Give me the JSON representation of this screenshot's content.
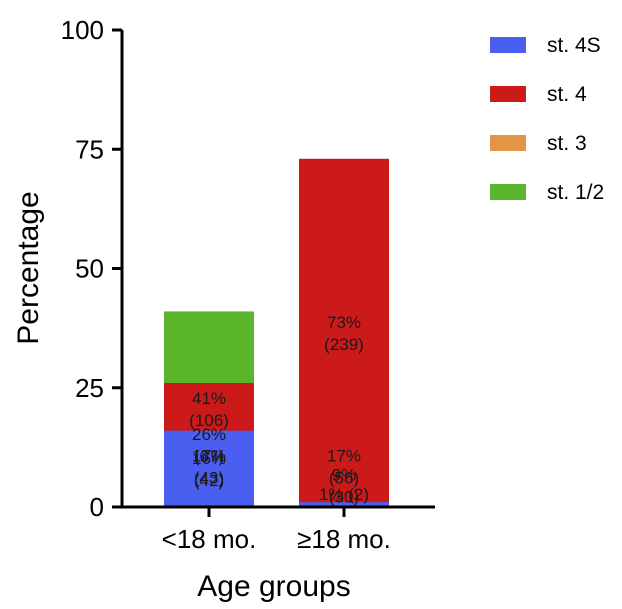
{
  "chart_data": {
    "type": "bar",
    "stacked": true,
    "title": "",
    "xlabel": "Age groups",
    "ylabel": "Percentage",
    "ylim": [
      0,
      100
    ],
    "yticks": [
      "0",
      "25",
      "50",
      "75",
      "100"
    ],
    "categories": [
      "<18 mo.",
      "≥18 mo."
    ],
    "grid": false,
    "legend_position": "right",
    "series": [
      {
        "name": "st. 1/2",
        "color": "#5ab52a",
        "values": [
          41,
          17
        ],
        "labels": [
          [
            "41%",
            "(106)"
          ],
          [
            "17%",
            "(56)"
          ]
        ]
      },
      {
        "name": "st. 3",
        "color": "#e19644",
        "values": [
          17,
          9
        ],
        "labels": [
          [
            "17%",
            "(43)"
          ],
          [
            "9%",
            "(30)"
          ]
        ]
      },
      {
        "name": "st. 4",
        "color": "#cc1a1a",
        "values": [
          26,
          73
        ],
        "labels": [
          [
            "26%",
            "(67)"
          ],
          [
            "73%",
            "(239)"
          ]
        ]
      },
      {
        "name": "st. 4S",
        "color": "#4a5ef0",
        "values": [
          16,
          1
        ],
        "labels": [
          [
            "16%",
            "(42)"
          ],
          [
            "1% (2)"
          ]
        ]
      }
    ],
    "legend_order": [
      "st. 4S",
      "st. 4",
      "st. 3",
      "st. 1/2"
    ]
  }
}
